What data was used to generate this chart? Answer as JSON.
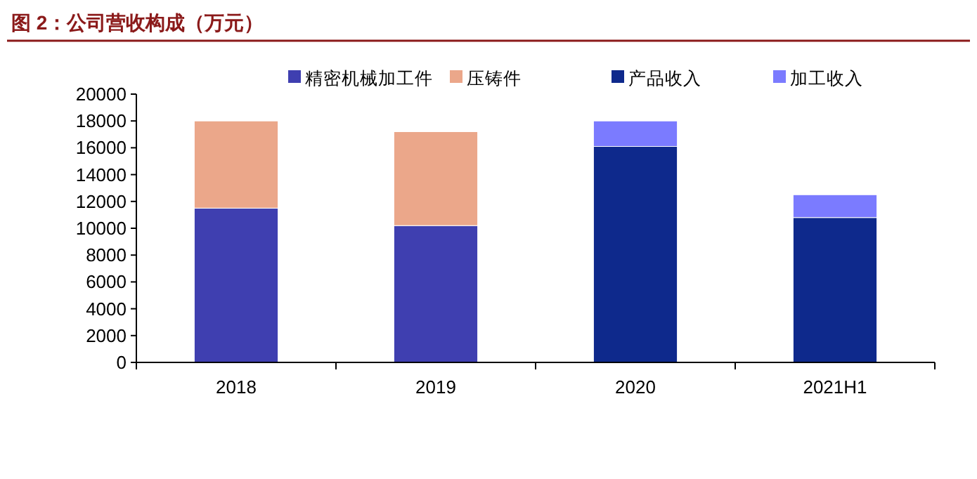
{
  "chart_data": {
    "type": "bar",
    "title": "图 2：公司营收构成（万元）",
    "stacked": true,
    "categories": [
      "2018",
      "2019",
      "2020",
      "2021H1"
    ],
    "series": [
      {
        "name": "精密机械加工件",
        "color": "#3f3fb0",
        "values": [
          11500,
          10200,
          null,
          null
        ]
      },
      {
        "name": "压铸件",
        "color": "#eba78a",
        "values": [
          6500,
          7000,
          null,
          null
        ]
      },
      {
        "name": "产品收入",
        "color": "#0e298c",
        "values": [
          null,
          null,
          16100,
          10800
        ]
      },
      {
        "name": "加工收入",
        "color": "#7b7bff",
        "values": [
          null,
          null,
          1900,
          1700
        ]
      }
    ],
    "ylim": [
      0,
      20000
    ],
    "yticks": [
      0,
      2000,
      4000,
      6000,
      8000,
      10000,
      12000,
      14000,
      16000,
      18000,
      20000
    ],
    "grid": false,
    "legend": "top"
  }
}
